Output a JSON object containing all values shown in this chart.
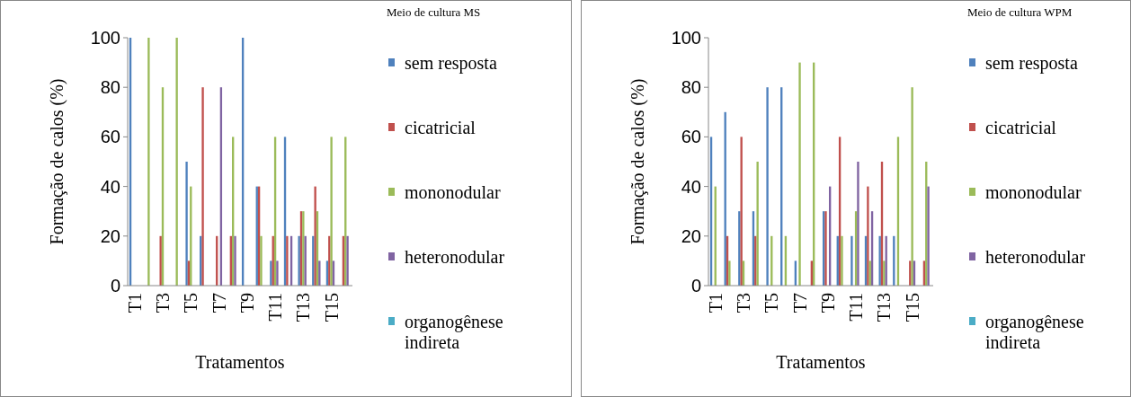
{
  "chart_data": [
    {
      "type": "bar",
      "legend_title": "Meio de cultura MS",
      "xlabel": "Tratamentos",
      "ylabel": "Formação de calos (%)",
      "categories": [
        "T1",
        null,
        "T3",
        null,
        "T5",
        null,
        "T7",
        null,
        "T9",
        null,
        "T11",
        null,
        "T13",
        null,
        "T15",
        null
      ],
      "series": [
        {
          "name": "sem resposta",
          "color": "#4f81bd",
          "values": [
            100,
            0,
            0,
            0,
            50,
            20,
            0,
            0,
            100,
            40,
            10,
            60,
            20,
            20,
            10,
            0
          ]
        },
        {
          "name": "cicatricial",
          "color": "#c0504d",
          "values": [
            0,
            0,
            20,
            0,
            10,
            80,
            20,
            20,
            0,
            40,
            20,
            20,
            30,
            40,
            20,
            20
          ]
        },
        {
          "name": "mononodular",
          "color": "#9bbb59",
          "values": [
            0,
            100,
            80,
            100,
            40,
            0,
            0,
            60,
            0,
            20,
            60,
            0,
            30,
            30,
            60,
            60
          ]
        },
        {
          "name": "heteronodular",
          "color": "#8064a2",
          "values": [
            0,
            0,
            0,
            0,
            0,
            0,
            80,
            20,
            0,
            0,
            10,
            20,
            20,
            10,
            10,
            20
          ]
        },
        {
          "name": "organogênese indireta",
          "color": "#4bacc6",
          "values": [
            0,
            0,
            0,
            0,
            0,
            0,
            0,
            0,
            0,
            0,
            0,
            0,
            0,
            0,
            0,
            0
          ]
        }
      ],
      "ylim": [
        0,
        100
      ],
      "yticks": [
        0,
        20,
        40,
        60,
        80,
        100
      ],
      "legend": "right"
    },
    {
      "type": "bar",
      "legend_title": "Meio de cultura WPM",
      "xlabel": "Tratamentos",
      "ylabel": "Formação de calos (%)",
      "categories": [
        "T1",
        null,
        "T3",
        null,
        "T5",
        null,
        "T7",
        null,
        "T9",
        null,
        "T11",
        null,
        "T13",
        null,
        "T15",
        null
      ],
      "series": [
        {
          "name": "sem resposta",
          "color": "#4f81bd",
          "values": [
            60,
            70,
            30,
            30,
            80,
            80,
            10,
            0,
            30,
            20,
            20,
            20,
            20,
            20,
            0,
            0
          ]
        },
        {
          "name": "cicatricial",
          "color": "#c0504d",
          "values": [
            0,
            20,
            60,
            20,
            0,
            0,
            0,
            10,
            30,
            60,
            0,
            40,
            50,
            0,
            10,
            10
          ]
        },
        {
          "name": "mononodular",
          "color": "#9bbb59",
          "values": [
            40,
            10,
            10,
            50,
            20,
            20,
            90,
            90,
            0,
            20,
            30,
            10,
            10,
            60,
            80,
            50
          ]
        },
        {
          "name": "heteronodular",
          "color": "#8064a2",
          "values": [
            0,
            0,
            0,
            0,
            0,
            0,
            0,
            0,
            40,
            0,
            50,
            30,
            20,
            0,
            10,
            40
          ]
        },
        {
          "name": "organogênese indireta",
          "color": "#4bacc6",
          "values": [
            0,
            0,
            0,
            0,
            0,
            0,
            0,
            0,
            0,
            0,
            0,
            0,
            0,
            0,
            0,
            0
          ]
        }
      ],
      "ylim": [
        0,
        100
      ],
      "yticks": [
        0,
        20,
        40,
        60,
        80,
        100
      ],
      "legend": "right"
    }
  ]
}
